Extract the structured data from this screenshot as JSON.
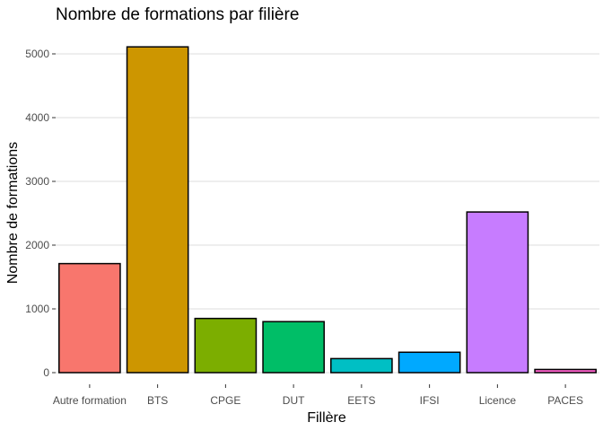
{
  "chart_data": {
    "type": "bar",
    "title": "Nombre de formations par filière",
    "xlabel": "Fillère",
    "ylabel": "Nombre de formations",
    "categories": [
      "Autre formation",
      "BTS",
      "CPGE",
      "DUT",
      "EETS",
      "IFSI",
      "Licence",
      "PACES"
    ],
    "values": [
      1710,
      5110,
      850,
      800,
      220,
      320,
      2520,
      50
    ],
    "colors": [
      "#F8766D",
      "#CD9600",
      "#7CAE00",
      "#00BE67",
      "#00BFC4",
      "#00A9FF",
      "#C77CFF",
      "#FF61CC"
    ],
    "ylim": [
      0,
      5300
    ],
    "yticks": [
      0,
      1000,
      2000,
      3000,
      4000,
      5000
    ],
    "ytick_labels": [
      "0",
      "1000",
      "2000",
      "3000",
      "4000",
      "5000"
    ],
    "grid": "horizontal",
    "legend": "none"
  }
}
